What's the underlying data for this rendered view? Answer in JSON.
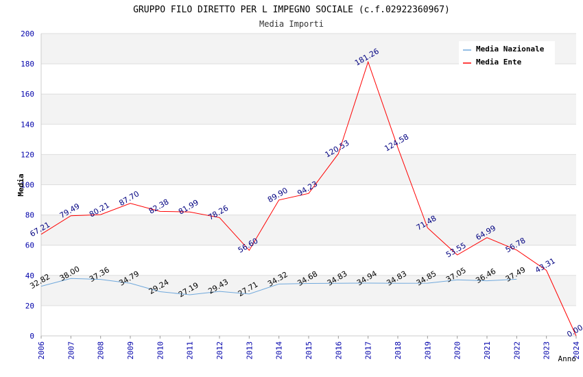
{
  "chart_data": {
    "type": "line",
    "title": "GRUPPO FILO DIRETTO PER L IMPEGNO SOCIALE (c.f.02922360967)",
    "subtitle": "Media Importi",
    "xlabel": "Anno",
    "ylabel": "Media",
    "ylim": [
      0,
      200
    ],
    "yticks": [
      "0",
      "20",
      "40",
      "60",
      "80",
      "100",
      "120",
      "140",
      "160",
      "180",
      "200"
    ],
    "categories": [
      "2006",
      "2007",
      "2008",
      "2009",
      "2010",
      "2011",
      "2012",
      "2013",
      "2014",
      "2015",
      "2016",
      "2017",
      "2018",
      "2019",
      "2020",
      "2021",
      "2022",
      "2023",
      "2024"
    ],
    "grid": true,
    "legend_position": "top-right",
    "series": [
      {
        "name": "Media Nazionale",
        "color": "#6fa8dc",
        "label_color": "#000000",
        "values": [
          32.82,
          38.0,
          37.36,
          34.79,
          29.24,
          27.19,
          29.43,
          27.71,
          34.32,
          34.68,
          34.83,
          34.94,
          34.83,
          34.85,
          37.05,
          36.46,
          37.49,
          null,
          null
        ],
        "labels": [
          "32.82",
          "38.00",
          "37.36",
          "34.79",
          "29.24",
          "27.19",
          "29.43",
          "27.71",
          "34.32",
          "34.68",
          "34.83",
          "34.94",
          "34.83",
          "34.85",
          "37.05",
          "36.46",
          "37.49",
          null,
          null
        ]
      },
      {
        "name": "Media Ente",
        "color": "#ff0000",
        "label_color": "#000080",
        "values": [
          67.21,
          79.49,
          80.21,
          87.7,
          82.38,
          81.99,
          78.26,
          56.6,
          89.9,
          94.23,
          120.53,
          181.26,
          124.58,
          71.48,
          53.55,
          64.99,
          56.78,
          43.31,
          0.0
        ],
        "labels": [
          "67.21",
          "79.49",
          "80.21",
          "87.70",
          "82.38",
          "81.99",
          "78.26",
          "56.60",
          "89.90",
          "94.23",
          "120.53",
          "181.26",
          "124.58",
          "71.48",
          "53.55",
          "64.99",
          "56.78",
          "43.31",
          "0.00"
        ]
      }
    ]
  }
}
